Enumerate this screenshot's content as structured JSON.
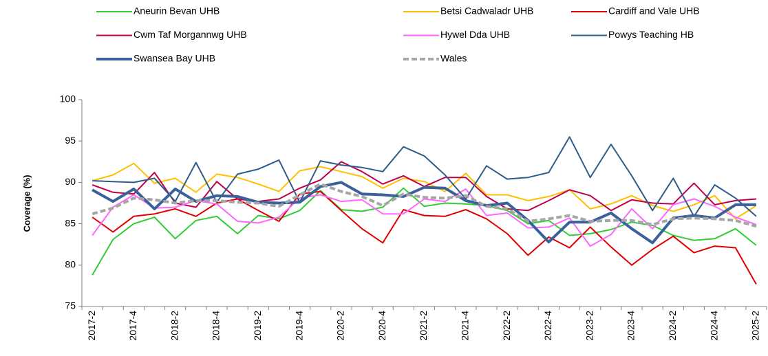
{
  "chart_data": {
    "type": "line",
    "y_label": "Coverage (%)",
    "categories": [
      "2017-2",
      null,
      "2017-4",
      null,
      "2018-2",
      null,
      "2018-4",
      null,
      "2019-2",
      null,
      "2019-4",
      null,
      "2020-2",
      null,
      "2020-4",
      null,
      "2021-2",
      null,
      "2021-4",
      null,
      "2022-2",
      null,
      "2022-4",
      null,
      "2023-2",
      null,
      "2023-4",
      null,
      "2024-2",
      null,
      "2024-4",
      null,
      "2025-2"
    ],
    "ylim": [
      75,
      100
    ],
    "yticks": [
      75,
      80,
      85,
      90,
      95,
      100
    ],
    "grid": false,
    "series": [
      {
        "name": "Aneurin Bevan UHB",
        "color": "#33cc33",
        "line_width": 2,
        "values": [
          78.8,
          83.1,
          85.0,
          85.8,
          83.2,
          85.4,
          85.9,
          83.8,
          86.0,
          85.6,
          86.6,
          89.0,
          86.7,
          86.5,
          87.0,
          89.3,
          87.1,
          87.5,
          87.4,
          87.2,
          86.6,
          85.0,
          85.4,
          83.6,
          83.8,
          84.3,
          85.2,
          84.8,
          83.6,
          83.0,
          83.2,
          84.4,
          82.4
        ]
      },
      {
        "name": "Betsi Cadwaladr UHB",
        "color": "#ffc000",
        "line_width": 2,
        "values": [
          90.2,
          90.9,
          92.3,
          89.9,
          90.5,
          88.8,
          91.0,
          90.6,
          89.8,
          88.9,
          91.4,
          91.9,
          91.3,
          90.7,
          89.3,
          90.5,
          90.1,
          88.9,
          91.1,
          88.5,
          88.5,
          87.8,
          88.3,
          89.1,
          86.8,
          87.4,
          88.4,
          87.2,
          86.5,
          87.3,
          88.4,
          85.6,
          87.2
        ]
      },
      {
        "name": "Cardiff and Vale UHB",
        "color": "#e00000",
        "line_width": 2,
        "values": [
          85.8,
          84.0,
          85.9,
          86.2,
          86.8,
          85.9,
          87.5,
          88.0,
          86.6,
          85.3,
          88.6,
          88.9,
          86.6,
          84.4,
          82.7,
          86.7,
          86.0,
          85.9,
          86.7,
          85.6,
          83.8,
          81.2,
          83.4,
          82.1,
          84.6,
          82.2,
          80.0,
          81.9,
          83.5,
          81.5,
          82.3,
          82.1,
          77.7
        ]
      },
      {
        "name": "Cwm Taf Morgannwg UHB",
        "color": "#c0004a",
        "line_width": 2,
        "values": [
          89.7,
          88.8,
          88.6,
          91.2,
          87.5,
          87.0,
          90.1,
          88.0,
          87.7,
          88.0,
          89.3,
          90.3,
          92.5,
          91.3,
          89.8,
          90.8,
          89.5,
          90.6,
          90.6,
          88.3,
          86.8,
          86.6,
          87.8,
          89.1,
          88.4,
          86.6,
          87.9,
          87.5,
          87.4,
          89.9,
          87.3,
          87.8,
          88.0
        ]
      },
      {
        "name": "Hywel Dda UHB",
        "color": "#ff66ff",
        "line_width": 2,
        "values": [
          83.6,
          87.0,
          88.5,
          86.9,
          87.0,
          87.8,
          87.4,
          85.3,
          85.1,
          85.8,
          88.1,
          88.5,
          87.7,
          87.9,
          86.2,
          86.2,
          88.0,
          87.7,
          89.2,
          86.0,
          86.3,
          84.5,
          84.6,
          85.7,
          82.3,
          83.7,
          86.8,
          84.4,
          87.3,
          88.0,
          87.1,
          85.8,
          84.9
        ]
      },
      {
        "name": "Powys Teaching HB",
        "color": "#2e5c8a",
        "line_width": 2,
        "values": [
          90.2,
          90.1,
          90.0,
          90.5,
          87.7,
          92.4,
          87.6,
          91.0,
          91.6,
          92.7,
          87.6,
          92.6,
          92.1,
          91.8,
          91.3,
          94.3,
          93.2,
          90.9,
          88.0,
          92.0,
          90.4,
          90.6,
          91.2,
          95.5,
          90.6,
          94.6,
          90.8,
          86.6,
          90.5,
          85.9,
          89.7,
          88.1,
          85.9
        ]
      },
      {
        "name": "Swansea Bay UHB",
        "color": "#3a6199",
        "line_width": 4,
        "values": [
          89.1,
          87.7,
          89.2,
          86.8,
          89.2,
          87.7,
          88.4,
          88.3,
          87.6,
          87.5,
          87.6,
          89.5,
          90.0,
          88.6,
          88.5,
          88.3,
          89.4,
          89.3,
          87.8,
          87.2,
          87.5,
          85.4,
          82.8,
          85.2,
          85.2,
          86.3,
          84.4,
          82.7,
          85.7,
          86.0,
          85.7,
          87.3,
          87.3
        ]
      },
      {
        "name": "Wales",
        "color": "#a6a6a6",
        "line_width": 4,
        "dashed": true,
        "values": [
          86.2,
          86.9,
          88.1,
          87.9,
          87.5,
          87.8,
          87.8,
          87.6,
          87.5,
          87.1,
          88.5,
          89.8,
          88.9,
          88.3,
          87.2,
          88.6,
          88.2,
          88.1,
          88.4,
          87.1,
          86.8,
          85.3,
          85.6,
          86.0,
          85.3,
          85.4,
          85.4,
          84.9,
          85.6,
          85.7,
          85.6,
          85.4,
          84.7
        ]
      }
    ]
  }
}
